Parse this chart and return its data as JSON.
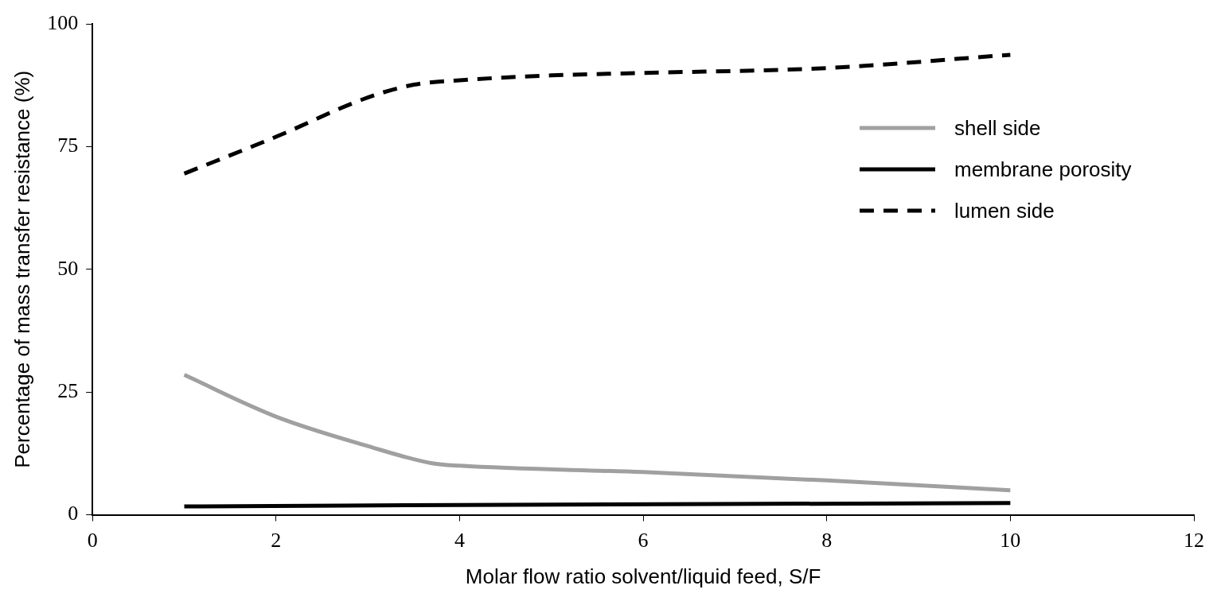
{
  "chart_data": {
    "type": "line",
    "xlabel": "Molar flow ratio solvent/liquid feed, S/F",
    "ylabel": "Percentage of mass transfer resistance (%)",
    "xlim": [
      0,
      12
    ],
    "xticks": [
      0,
      2,
      4,
      6,
      8,
      10,
      12
    ],
    "ylim": [
      0,
      100
    ],
    "yticks": [
      0,
      25,
      50,
      75,
      100
    ],
    "grid": false,
    "legend": "top right",
    "marker": "none",
    "series": [
      {
        "name": "shell side",
        "color": "#a0a0a0",
        "line_style": "solid",
        "x": [
          1,
          2,
          3,
          3.7,
          4,
          6,
          8,
          10
        ],
        "values": [
          28.5,
          20,
          14,
          10.5,
          10,
          8.7,
          7,
          5
        ]
      },
      {
        "name": "membrane porosity",
        "color": "#000000",
        "line_style": "solid",
        "x": [
          1,
          4,
          10
        ],
        "values": [
          1.7,
          2,
          2.4
        ]
      },
      {
        "name": "lumen side",
        "color": "#000000",
        "line_style": "dashed",
        "x": [
          1,
          2,
          3,
          3.5,
          4,
          5,
          6,
          8,
          10
        ],
        "values": [
          69.5,
          77,
          85,
          87.6,
          88.5,
          89.5,
          90,
          91,
          93.7
        ]
      }
    ]
  }
}
